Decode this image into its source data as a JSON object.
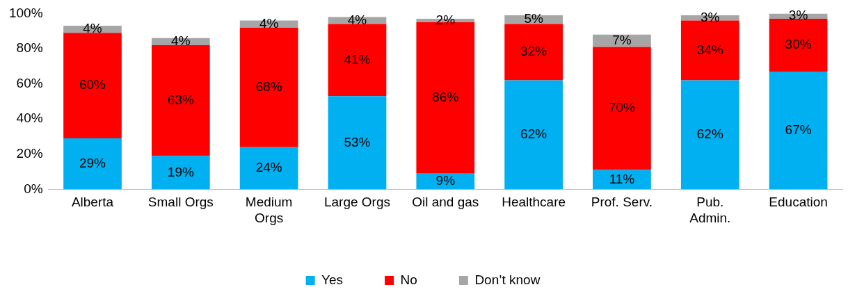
{
  "chart_data": {
    "type": "bar",
    "stacked": true,
    "categories": [
      "Alberta",
      "Small Orgs",
      "Medium Orgs",
      "Large Orgs",
      "Oil and gas",
      "Healthcare",
      "Prof. Serv.",
      "Pub. Admin.",
      "Education"
    ],
    "series": [
      {
        "name": "Yes",
        "color": "#00b0f0",
        "values": [
          29,
          19,
          24,
          53,
          9,
          62,
          11,
          62,
          67
        ],
        "value_labels": [
          "29%",
          "19%",
          "24%",
          "53%",
          "9%",
          "62%",
          "11%",
          "62%",
          "67%"
        ]
      },
      {
        "name": "No",
        "color": "#ff0000",
        "values": [
          60,
          63,
          68,
          41,
          86,
          32,
          70,
          34,
          30
        ],
        "value_labels": [
          "60%",
          "63%",
          "68%",
          "41%",
          "86%",
          "32%",
          "70%",
          "34%",
          "30%"
        ]
      },
      {
        "name": "Don’t know",
        "color": "#a6a6a6",
        "values": [
          4,
          4,
          4,
          4,
          2,
          5,
          7,
          3,
          3
        ],
        "value_labels": [
          "4%",
          "4%",
          "4%",
          "4%",
          "2%",
          "5%",
          "7%",
          "3%",
          "3%"
        ]
      }
    ],
    "ylim": [
      0,
      100
    ],
    "yticks": [
      {
        "value": 0,
        "label": "0%"
      },
      {
        "value": 20,
        "label": "20%"
      },
      {
        "value": 40,
        "label": "40%"
      },
      {
        "value": 60,
        "label": "60%"
      },
      {
        "value": 80,
        "label": "80%"
      },
      {
        "value": 100,
        "label": "100%"
      }
    ],
    "grid": false,
    "legend": "bottom"
  }
}
